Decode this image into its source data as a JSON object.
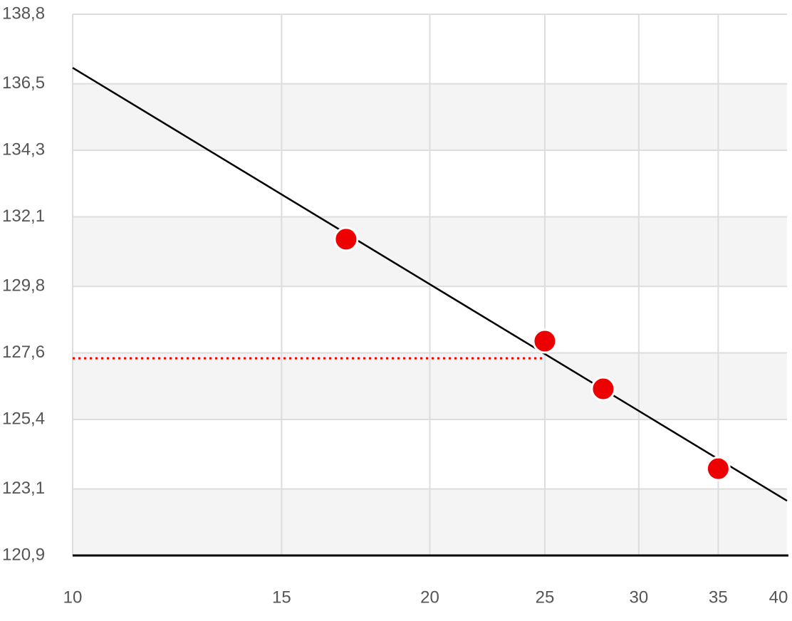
{
  "chart_data": {
    "type": "scatter",
    "xscale": "log",
    "xlim": [
      10,
      40
    ],
    "xticks": [
      10,
      15,
      20,
      25,
      30,
      35,
      40
    ],
    "ylim": [
      120.9,
      138.8
    ],
    "yticks": [
      {
        "value": 120.9,
        "label": "120,9"
      },
      {
        "value": 123.1,
        "label": "123,1"
      },
      {
        "value": 125.4,
        "label": "125,4"
      },
      {
        "value": 127.6,
        "label": "127,6"
      },
      {
        "value": 129.8,
        "label": "129,8"
      },
      {
        "value": 132.1,
        "label": "132,1"
      },
      {
        "value": 134.3,
        "label": "134,3"
      },
      {
        "value": 136.5,
        "label": "136,5"
      },
      {
        "value": 138.8,
        "label": "138,8"
      }
    ],
    "grid": true,
    "band_color": "#f4f4f4",
    "points": {
      "color": "#ee0000",
      "x": [
        17,
        25,
        28,
        35
      ],
      "values": [
        131.36,
        127.99,
        126.41,
        123.77
      ]
    },
    "lines": [
      {
        "color": "#000000",
        "dash": "solid",
        "x": [
          10,
          40
        ],
        "values": [
          137.03,
          122.71
        ]
      },
      {
        "color": "#ee0000",
        "dash": "dotted",
        "x": [
          10,
          25
        ],
        "values": [
          127.42,
          127.42
        ]
      }
    ]
  }
}
